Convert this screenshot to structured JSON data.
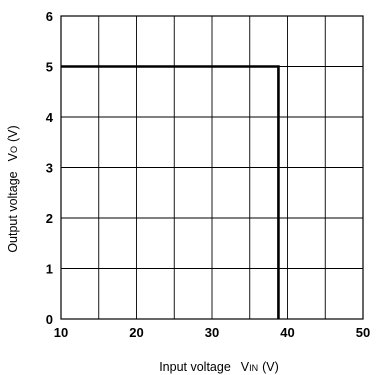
{
  "chart_data": {
    "type": "line",
    "xlabel": "Input voltage",
    "xlabel_symbol": "V",
    "xlabel_subscript": "IN",
    "xlabel_unit": "(V)",
    "ylabel": "Output voltage",
    "ylabel_symbol": "V",
    "ylabel_subscript": "O",
    "ylabel_unit": "(V)",
    "xlim": [
      10,
      50
    ],
    "ylim": [
      0,
      6
    ],
    "x_ticks": [
      10,
      20,
      30,
      40,
      50
    ],
    "y_ticks": [
      0,
      1,
      2,
      3,
      4,
      5,
      6
    ],
    "x_gridlines": [
      10,
      15,
      20,
      25,
      30,
      35,
      40,
      45,
      50
    ],
    "y_gridlines": [
      0,
      1,
      2,
      3,
      4,
      5,
      6
    ],
    "grid": true,
    "series": [
      {
        "x": [
          10,
          38.8,
          38.8
        ],
        "y": [
          5,
          5,
          0
        ]
      }
    ],
    "x_tick_labels": [
      "10",
      "20",
      "30",
      "40",
      "50"
    ],
    "y_tick_labels": [
      "0",
      "1",
      "2",
      "3",
      "4",
      "5",
      "6"
    ]
  }
}
